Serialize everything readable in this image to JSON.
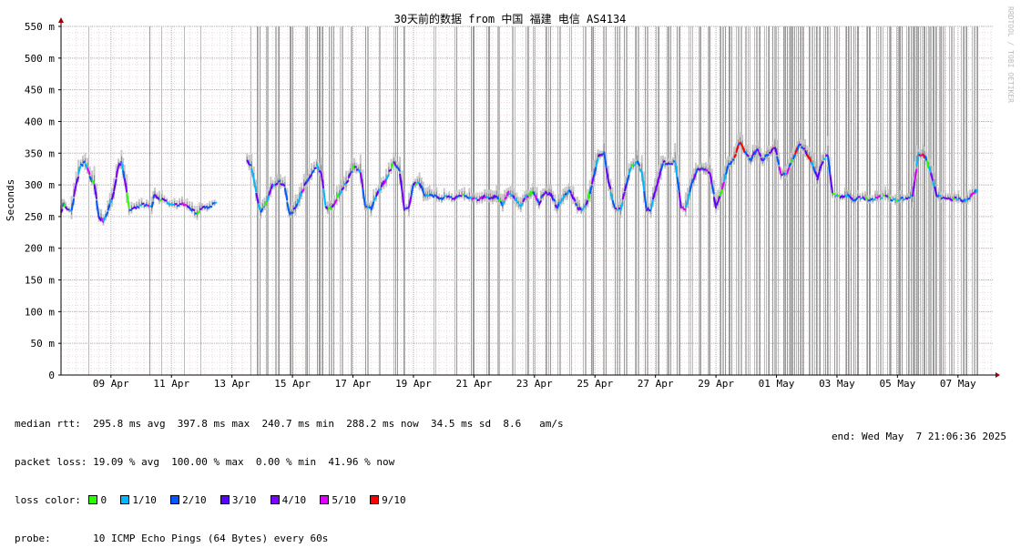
{
  "chart_data": {
    "type": "line",
    "title": "30天前的数据 from 中国 福建 电信 AS4134",
    "ylabel": "Seconds",
    "watermark": "RRDTOOL / TOBI OETIKER",
    "ylim": [
      0,
      550
    ],
    "yticks": [
      {
        "v": 0,
        "label": "0"
      },
      {
        "v": 50,
        "label": "50 m"
      },
      {
        "v": 100,
        "label": "100 m"
      },
      {
        "v": 150,
        "label": "150 m"
      },
      {
        "v": 200,
        "label": "200 m"
      },
      {
        "v": 250,
        "label": "250 m"
      },
      {
        "v": 300,
        "label": "300 m"
      },
      {
        "v": 350,
        "label": "350 m"
      },
      {
        "v": 400,
        "label": "400 m"
      },
      {
        "v": 450,
        "label": "450 m"
      },
      {
        "v": 500,
        "label": "500 m"
      },
      {
        "v": 550,
        "label": "550 m"
      }
    ],
    "xlim": [
      0,
      30.8
    ],
    "xticks": [
      {
        "v": 1.65,
        "label": "09 Apr"
      },
      {
        "v": 3.65,
        "label": "11 Apr"
      },
      {
        "v": 5.65,
        "label": "13 Apr"
      },
      {
        "v": 7.65,
        "label": "15 Apr"
      },
      {
        "v": 9.65,
        "label": "17 Apr"
      },
      {
        "v": 11.65,
        "label": "19 Apr"
      },
      {
        "v": 13.65,
        "label": "21 Apr"
      },
      {
        "v": 15.65,
        "label": "23 Apr"
      },
      {
        "v": 17.65,
        "label": "25 Apr"
      },
      {
        "v": 19.65,
        "label": "27 Apr"
      },
      {
        "v": 21.65,
        "label": "29 Apr"
      },
      {
        "v": 23.65,
        "label": "01 May"
      },
      {
        "v": 25.65,
        "label": "03 May"
      },
      {
        "v": 27.65,
        "label": "05 May"
      },
      {
        "v": 29.65,
        "label": "07 May"
      }
    ],
    "median_series": [
      [
        0.0,
        258
      ],
      [
        0.1,
        270
      ],
      [
        0.2,
        262
      ],
      [
        0.35,
        260
      ],
      [
        0.5,
        300
      ],
      [
        0.65,
        330
      ],
      [
        0.8,
        335
      ],
      [
        0.95,
        315
      ],
      [
        1.1,
        300
      ],
      [
        1.25,
        250
      ],
      [
        1.4,
        242
      ],
      [
        1.55,
        258
      ],
      [
        1.75,
        290
      ],
      [
        1.9,
        328
      ],
      [
        2.0,
        338
      ],
      [
        2.1,
        310
      ],
      [
        2.25,
        262
      ],
      [
        2.5,
        265
      ],
      [
        2.75,
        268
      ],
      [
        3.0,
        266
      ],
      [
        3.1,
        285
      ],
      [
        3.25,
        278
      ],
      [
        3.5,
        273
      ],
      [
        3.75,
        268
      ],
      [
        4.0,
        270
      ],
      [
        4.25,
        262
      ],
      [
        4.5,
        256
      ],
      [
        4.75,
        264
      ],
      [
        5.0,
        268
      ],
      [
        5.15,
        272
      ],
      [
        5.2,
        null
      ],
      [
        6.15,
        340
      ],
      [
        6.3,
        328
      ],
      [
        6.45,
        290
      ],
      [
        6.6,
        255
      ],
      [
        6.8,
        275
      ],
      [
        7.0,
        300
      ],
      [
        7.25,
        305
      ],
      [
        7.4,
        296
      ],
      [
        7.55,
        255
      ],
      [
        7.75,
        262
      ],
      [
        7.95,
        290
      ],
      [
        8.2,
        310
      ],
      [
        8.45,
        330
      ],
      [
        8.6,
        320
      ],
      [
        8.75,
        265
      ],
      [
        8.95,
        262
      ],
      [
        9.2,
        285
      ],
      [
        9.5,
        310
      ],
      [
        9.7,
        330
      ],
      [
        9.9,
        320
      ],
      [
        10.05,
        265
      ],
      [
        10.25,
        262
      ],
      [
        10.5,
        290
      ],
      [
        10.75,
        310
      ],
      [
        11.0,
        335
      ],
      [
        11.2,
        320
      ],
      [
        11.35,
        262
      ],
      [
        11.5,
        262
      ],
      [
        11.65,
        300
      ],
      [
        11.85,
        305
      ],
      [
        12.05,
        280
      ],
      [
        12.25,
        285
      ],
      [
        12.5,
        278
      ],
      [
        12.75,
        282
      ],
      [
        13.0,
        279
      ],
      [
        13.25,
        285
      ],
      [
        13.5,
        280
      ],
      [
        13.75,
        276
      ],
      [
        14.0,
        282
      ],
      [
        14.2,
        278
      ],
      [
        14.4,
        285
      ],
      [
        14.6,
        268
      ],
      [
        14.8,
        288
      ],
      [
        15.0,
        278
      ],
      [
        15.2,
        265
      ],
      [
        15.4,
        282
      ],
      [
        15.6,
        290
      ],
      [
        15.8,
        270
      ],
      [
        16.0,
        288
      ],
      [
        16.2,
        285
      ],
      [
        16.4,
        265
      ],
      [
        16.6,
        280
      ],
      [
        16.8,
        290
      ],
      [
        17.0,
        272
      ],
      [
        17.2,
        258
      ],
      [
        17.35,
        265
      ],
      [
        17.55,
        300
      ],
      [
        17.75,
        345
      ],
      [
        17.95,
        352
      ],
      [
        18.1,
        305
      ],
      [
        18.3,
        262
      ],
      [
        18.5,
        262
      ],
      [
        18.7,
        300
      ],
      [
        18.85,
        330
      ],
      [
        19.05,
        335
      ],
      [
        19.2,
        320
      ],
      [
        19.35,
        262
      ],
      [
        19.5,
        262
      ],
      [
        19.7,
        300
      ],
      [
        19.9,
        335
      ],
      [
        20.1,
        335
      ],
      [
        20.3,
        335
      ],
      [
        20.5,
        265
      ],
      [
        20.65,
        262
      ],
      [
        20.85,
        300
      ],
      [
        21.05,
        325
      ],
      [
        21.25,
        325
      ],
      [
        21.45,
        320
      ],
      [
        21.65,
        265
      ],
      [
        21.85,
        290
      ],
      [
        22.05,
        330
      ],
      [
        22.25,
        340
      ],
      [
        22.45,
        370
      ],
      [
        22.6,
        350
      ],
      [
        22.8,
        340
      ],
      [
        23.0,
        355
      ],
      [
        23.2,
        340
      ],
      [
        23.4,
        350
      ],
      [
        23.6,
        360
      ],
      [
        23.8,
        315
      ],
      [
        24.0,
        320
      ],
      [
        24.2,
        340
      ],
      [
        24.4,
        365
      ],
      [
        24.6,
        355
      ],
      [
        24.8,
        335
      ],
      [
        25.0,
        310
      ],
      [
        25.2,
        340
      ],
      [
        25.35,
        345
      ],
      [
        25.5,
        285
      ],
      [
        25.75,
        280
      ],
      [
        26.0,
        283
      ],
      [
        26.25,
        277
      ],
      [
        26.5,
        280
      ],
      [
        26.75,
        275
      ],
      [
        27.0,
        280
      ],
      [
        27.25,
        282
      ],
      [
        27.5,
        276
      ],
      [
        27.75,
        278
      ],
      [
        28.0,
        280
      ],
      [
        28.15,
        282
      ],
      [
        28.35,
        350
      ],
      [
        28.55,
        345
      ],
      [
        28.75,
        320
      ],
      [
        28.95,
        283
      ],
      [
        29.15,
        280
      ],
      [
        29.4,
        276
      ],
      [
        29.6,
        278
      ],
      [
        29.8,
        275
      ],
      [
        30.05,
        278
      ],
      [
        30.2,
        290
      ],
      [
        30.3,
        292
      ]
    ],
    "series": [
      {
        "name": "0",
        "color": "#26ff00"
      },
      {
        "name": "1/10",
        "color": "#00b8ff"
      },
      {
        "name": "2/10",
        "color": "#0059ff"
      },
      {
        "name": "3/10",
        "color": "#5e00ff"
      },
      {
        "name": "4/10",
        "color": "#7e00ff"
      },
      {
        "name": "5/10",
        "color": "#dd00ff"
      },
      {
        "name": "9/10",
        "color": "#ff0000"
      }
    ],
    "grid": true,
    "grid_color": "#e0a0a0",
    "loss_bar_color": "#bbbbbb",
    "axis_color": "#000000",
    "arrow_color": "#990000"
  },
  "stats": {
    "median_rtt": "median rtt:  295.8 ms avg  397.8 ms max  240.7 ms min  288.2 ms now  34.5 ms sd  8.6   am/s",
    "packet_loss": "packet loss: 19.09 % avg  100.00 % max  0.00 % min  41.96 % now",
    "loss_color_label": "loss color:",
    "probe": "probe:       10 ICMP Echo Pings (64 Bytes) every 60s",
    "end": "end: Wed May  7 21:06:36 2025"
  }
}
